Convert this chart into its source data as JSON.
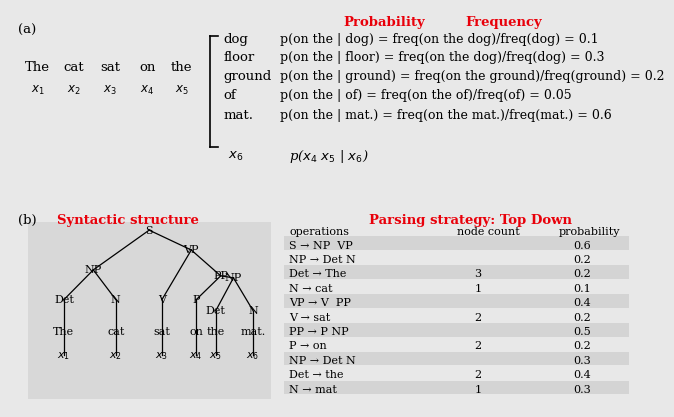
{
  "bg_color": "#e8e8e8",
  "panel_sep_color": "#c0c0c0",
  "red_color": "#e8000a",
  "panel_a": {
    "label": "(a)",
    "sentence_words": [
      "The",
      "cat",
      "sat",
      "on",
      "the"
    ],
    "sentence_subs": [
      "$x_1$",
      "$x_2$",
      "$x_3$",
      "$x_4$",
      "$x_5$"
    ],
    "context_words": [
      "dog",
      "floor",
      "ground",
      "of",
      "mat."
    ],
    "x6_label": "$x_6$",
    "prob_title": "Probability",
    "freq_title": "Frequency",
    "prob_lines": [
      "p(on the | dog) = freq(on the dog)/freq(dog) = 0.1",
      "p(on the | floor) = freq(on the dog)/freq(dog) = 0.3",
      "p(on the | ground) = freq(on the ground)/freq(ground) = 0.2",
      "p(on the | of) = freq(on the of)/freq(of) = 0.05",
      "p(on the | mat.) = freq(on the mat.)/freq(mat.) = 0.6"
    ],
    "bottom_formula": "p($x_4$ $x_5$ | $x_6$)"
  },
  "panel_b": {
    "label": "(b)",
    "syn_title": "Syntactic structure",
    "parse_title": "Parsing strategy: Top Down",
    "table_headers": [
      "operations",
      "node count",
      "probability"
    ],
    "table_rows": [
      [
        "S → NP  VP",
        "",
        "0.6"
      ],
      [
        "NP → Det N",
        "",
        "0.2"
      ],
      [
        "Det → The",
        "3",
        "0.2"
      ],
      [
        "N → cat",
        "1",
        "0.1"
      ],
      [
        "VP → V  PP",
        "",
        "0.4"
      ],
      [
        "V → sat",
        "2",
        "0.2"
      ],
      [
        "PP → P NP",
        "",
        "0.5"
      ],
      [
        "P → on",
        "2",
        "0.2"
      ],
      [
        "NP → Det N",
        "",
        "0.3"
      ],
      [
        "Det → the",
        "2",
        "0.4"
      ],
      [
        "N → mat",
        "1",
        "0.3"
      ]
    ]
  }
}
